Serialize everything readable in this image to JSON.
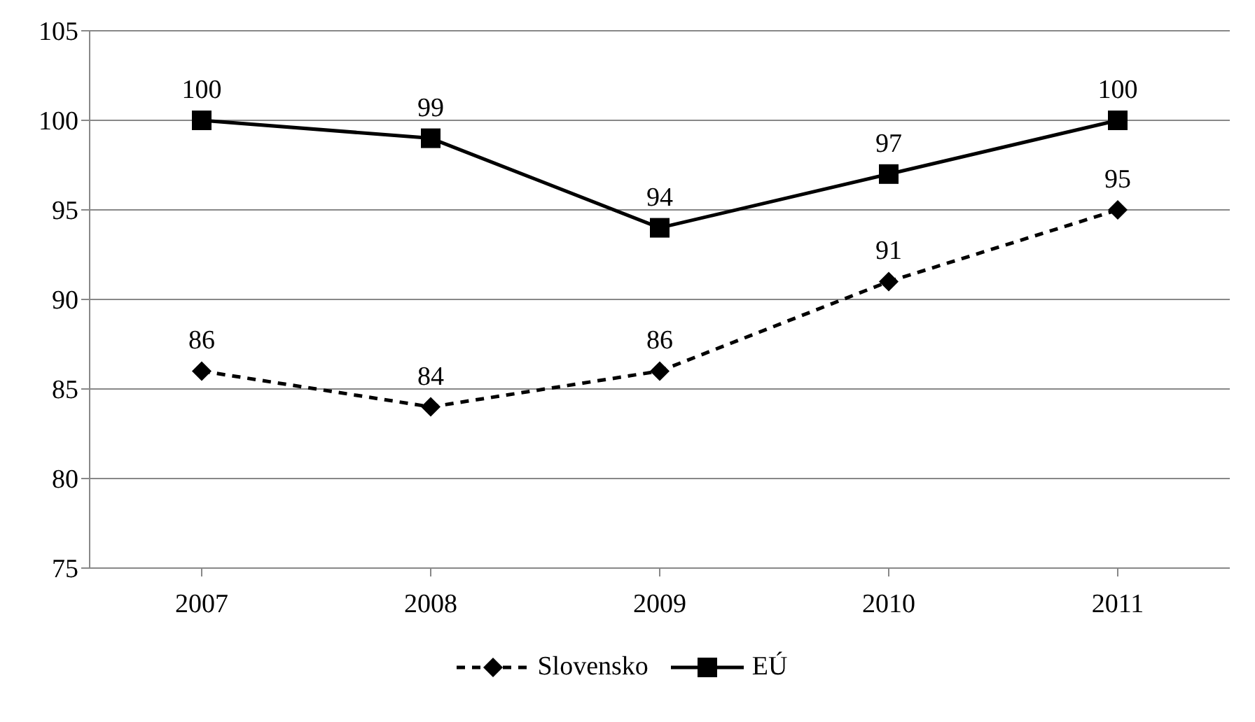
{
  "chart_data": {
    "type": "line",
    "categories": [
      "2007",
      "2008",
      "2009",
      "2010",
      "2011"
    ],
    "series": [
      {
        "name": "Slovensko",
        "color": "#000000",
        "values": [
          86,
          84,
          86,
          91,
          95
        ],
        "marker": "diamond",
        "line_style": "dashed"
      },
      {
        "name": "EÚ",
        "color": "#000000",
        "values": [
          100,
          99,
          94,
          97,
          100
        ],
        "marker": "square",
        "line_style": "solid"
      }
    ],
    "ylim": [
      75,
      105
    ],
    "yticks": [
      75,
      80,
      85,
      90,
      95,
      100,
      105
    ],
    "grid": "y",
    "legend": "bottom",
    "data_labels": true
  }
}
